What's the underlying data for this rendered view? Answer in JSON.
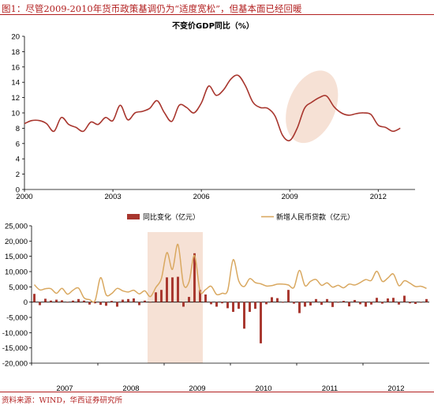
{
  "header": {
    "figure_title": "图1：尽管2009-2010年货币政策基调仍为“适度宽松”，但基本面已经回暖",
    "source": "资料来源：WIND，华西证券研究所"
  },
  "colors": {
    "accent": "#b21f1f",
    "gdp_line": "#a8362e",
    "loan_line": "#d9a860",
    "bar": "#a8362e",
    "highlight": "#f6e1d5"
  },
  "chart_data": [
    {
      "type": "line",
      "title": "不变价GDP同比（%）",
      "xlabel": "",
      "ylabel": "",
      "ylim": [
        0,
        20
      ],
      "yticks": [
        0,
        2,
        4,
        6,
        8,
        10,
        12,
        14,
        16,
        18,
        20
      ],
      "xlim": [
        2000,
        2013.25
      ],
      "xticks": [
        "2000",
        "2003",
        "2006",
        "2009",
        "2012"
      ],
      "grid": false,
      "highlight": "ellipse around 2009 trough and rebound",
      "series": [
        {
          "x": [
            2000.0,
            2000.25,
            2000.5,
            2000.75,
            2001.0,
            2001.25,
            2001.5,
            2001.75,
            2002.0,
            2002.25,
            2002.5,
            2002.75,
            2003.0,
            2003.25,
            2003.5,
            2003.75,
            2004.0,
            2004.25,
            2004.5,
            2004.75,
            2005.0,
            2005.25,
            2005.5,
            2005.75,
            2006.0,
            2006.25,
            2006.5,
            2006.75,
            2007.0,
            2007.25,
            2007.5,
            2007.75,
            2008.0,
            2008.25,
            2008.5,
            2008.75,
            2009.0,
            2009.25,
            2009.5,
            2009.75,
            2010.0,
            2010.25,
            2010.5,
            2010.75,
            2011.0,
            2011.25,
            2011.5,
            2011.75,
            2012.0,
            2012.25,
            2012.5,
            2012.75
          ],
          "values": [
            8.6,
            9.0,
            9.0,
            8.6,
            7.6,
            9.4,
            8.5,
            8.1,
            7.6,
            8.8,
            8.5,
            9.4,
            9.0,
            11.0,
            9.1,
            10.0,
            10.2,
            10.6,
            11.6,
            10.0,
            8.9,
            11.0,
            10.7,
            10.0,
            11.3,
            13.5,
            12.3,
            13.0,
            14.4,
            14.9,
            13.5,
            11.4,
            10.7,
            10.6,
            9.6,
            7.1,
            6.4,
            8.0,
            10.6,
            11.4,
            12.0,
            12.2,
            10.8,
            10.0,
            9.7,
            9.9,
            10.0,
            9.8,
            8.4,
            8.1,
            7.6,
            8.0
          ]
        }
      ]
    },
    {
      "type": "bar",
      "title": "",
      "xlabel": "",
      "ylabel": "",
      "ylim": [
        -20000,
        25000
      ],
      "yticks": [
        "-20,000",
        "-15,000",
        "-10,000",
        "-5,000",
        "0",
        "5,000",
        "10,000",
        "15,000",
        "20,000",
        "25,000"
      ],
      "xticks": [
        "2007",
        "2008",
        "2009",
        "2010",
        "2011",
        "2012"
      ],
      "legend": {
        "placement": "top",
        "entries": [
          "同比变化（亿元）",
          "新增人民币贷款（亿元）"
        ]
      },
      "grid": false,
      "highlight": "shaded box over late 2008 to mid 2009",
      "x": [
        "2007-01",
        "2007-02",
        "2007-03",
        "2007-04",
        "2007-05",
        "2007-06",
        "2007-07",
        "2007-08",
        "2007-09",
        "2007-10",
        "2007-11",
        "2007-12",
        "2008-01",
        "2008-02",
        "2008-03",
        "2008-04",
        "2008-05",
        "2008-06",
        "2008-07",
        "2008-08",
        "2008-09",
        "2008-10",
        "2008-11",
        "2008-12",
        "2009-01",
        "2009-02",
        "2009-03",
        "2009-04",
        "2009-05",
        "2009-06",
        "2009-07",
        "2009-08",
        "2009-09",
        "2009-10",
        "2009-11",
        "2009-12",
        "2010-01",
        "2010-02",
        "2010-03",
        "2010-04",
        "2010-05",
        "2010-06",
        "2010-07",
        "2010-08",
        "2010-09",
        "2010-10",
        "2010-11",
        "2010-12",
        "2011-01",
        "2011-02",
        "2011-03",
        "2011-04",
        "2011-05",
        "2011-06",
        "2011-07",
        "2011-08",
        "2011-09",
        "2011-10",
        "2011-11",
        "2011-12",
        "2012-01",
        "2012-02",
        "2012-03",
        "2012-04",
        "2012-05",
        "2012-06",
        "2012-07",
        "2012-08",
        "2012-09",
        "2012-10",
        "2012-11",
        "2012-12"
      ],
      "series": [
        {
          "name": "同比变化（亿元）",
          "type": "bar",
          "values": [
            2700,
            -1000,
            1100,
            500,
            800,
            600,
            -100,
            500,
            1000,
            500,
            -800,
            -400,
            -900,
            -1200,
            400,
            -1500,
            800,
            1000,
            1200,
            -1000,
            500,
            -100,
            3200,
            4000,
            8100,
            8100,
            8300,
            -1500,
            1700,
            16000,
            4000,
            2500,
            -700,
            -1500,
            -400,
            -2000,
            -3200,
            -2200,
            -8700,
            -3200,
            -2200,
            -13500,
            -700,
            1600,
            1300,
            -200,
            4000,
            -500,
            -3600,
            -1500,
            -1100,
            1000,
            -900,
            1000,
            -1600,
            -200,
            400,
            -1400,
            700,
            -700,
            -1500,
            -800,
            1400,
            -500,
            1200,
            1400,
            -800,
            2100,
            -400,
            -600,
            -200,
            1000
          ]
        },
        {
          "name": "新增人民币贷款（亿元）",
          "type": "line",
          "values": [
            5700,
            4000,
            4400,
            4400,
            2900,
            4500,
            2600,
            3900,
            4600,
            1400,
            800,
            500,
            8000,
            2400,
            2800,
            4500,
            3700,
            3300,
            3900,
            2700,
            3700,
            1800,
            4800,
            7700,
            16200,
            10700,
            18900,
            5900,
            6600,
            15300,
            3600,
            4100,
            5200,
            2500,
            2900,
            3800,
            13900,
            7000,
            5100,
            7700,
            6400,
            6000,
            5300,
            5400,
            5900,
            5900,
            5600,
            4800,
            10400,
            5400,
            6800,
            7400,
            5500,
            6300,
            4900,
            5500,
            4700,
            5900,
            5600,
            6400,
            7400,
            7100,
            10100,
            6800,
            7900,
            9200,
            5400,
            7000,
            6200,
            5100,
            5200,
            4500
          ]
        }
      ]
    }
  ]
}
